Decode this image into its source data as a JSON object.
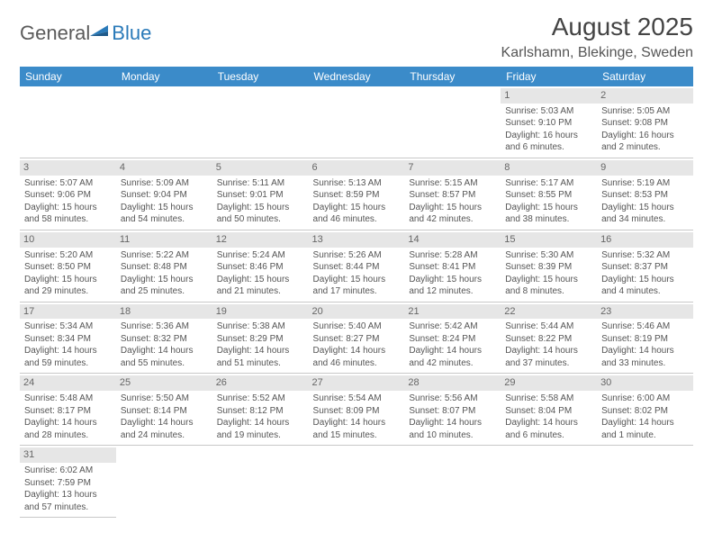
{
  "logo": {
    "general": "General",
    "blue": "Blue"
  },
  "title": "August 2025",
  "location": "Karlshamn, Blekinge, Sweden",
  "colors": {
    "header_bg": "#3b8bc9",
    "header_text": "#ffffff",
    "daynum_bg": "#e6e6e6",
    "border": "#c8c8c8",
    "text": "#555555",
    "logo_blue": "#2a7ab9"
  },
  "day_headers": [
    "Sunday",
    "Monday",
    "Tuesday",
    "Wednesday",
    "Thursday",
    "Friday",
    "Saturday"
  ],
  "weeks": [
    [
      null,
      null,
      null,
      null,
      null,
      {
        "n": "1",
        "sr": "Sunrise: 5:03 AM",
        "ss": "Sunset: 9:10 PM",
        "dl": "Daylight: 16 hours and 6 minutes."
      },
      {
        "n": "2",
        "sr": "Sunrise: 5:05 AM",
        "ss": "Sunset: 9:08 PM",
        "dl": "Daylight: 16 hours and 2 minutes."
      }
    ],
    [
      {
        "n": "3",
        "sr": "Sunrise: 5:07 AM",
        "ss": "Sunset: 9:06 PM",
        "dl": "Daylight: 15 hours and 58 minutes."
      },
      {
        "n": "4",
        "sr": "Sunrise: 5:09 AM",
        "ss": "Sunset: 9:04 PM",
        "dl": "Daylight: 15 hours and 54 minutes."
      },
      {
        "n": "5",
        "sr": "Sunrise: 5:11 AM",
        "ss": "Sunset: 9:01 PM",
        "dl": "Daylight: 15 hours and 50 minutes."
      },
      {
        "n": "6",
        "sr": "Sunrise: 5:13 AM",
        "ss": "Sunset: 8:59 PM",
        "dl": "Daylight: 15 hours and 46 minutes."
      },
      {
        "n": "7",
        "sr": "Sunrise: 5:15 AM",
        "ss": "Sunset: 8:57 PM",
        "dl": "Daylight: 15 hours and 42 minutes."
      },
      {
        "n": "8",
        "sr": "Sunrise: 5:17 AM",
        "ss": "Sunset: 8:55 PM",
        "dl": "Daylight: 15 hours and 38 minutes."
      },
      {
        "n": "9",
        "sr": "Sunrise: 5:19 AM",
        "ss": "Sunset: 8:53 PM",
        "dl": "Daylight: 15 hours and 34 minutes."
      }
    ],
    [
      {
        "n": "10",
        "sr": "Sunrise: 5:20 AM",
        "ss": "Sunset: 8:50 PM",
        "dl": "Daylight: 15 hours and 29 minutes."
      },
      {
        "n": "11",
        "sr": "Sunrise: 5:22 AM",
        "ss": "Sunset: 8:48 PM",
        "dl": "Daylight: 15 hours and 25 minutes."
      },
      {
        "n": "12",
        "sr": "Sunrise: 5:24 AM",
        "ss": "Sunset: 8:46 PM",
        "dl": "Daylight: 15 hours and 21 minutes."
      },
      {
        "n": "13",
        "sr": "Sunrise: 5:26 AM",
        "ss": "Sunset: 8:44 PM",
        "dl": "Daylight: 15 hours and 17 minutes."
      },
      {
        "n": "14",
        "sr": "Sunrise: 5:28 AM",
        "ss": "Sunset: 8:41 PM",
        "dl": "Daylight: 15 hours and 12 minutes."
      },
      {
        "n": "15",
        "sr": "Sunrise: 5:30 AM",
        "ss": "Sunset: 8:39 PM",
        "dl": "Daylight: 15 hours and 8 minutes."
      },
      {
        "n": "16",
        "sr": "Sunrise: 5:32 AM",
        "ss": "Sunset: 8:37 PM",
        "dl": "Daylight: 15 hours and 4 minutes."
      }
    ],
    [
      {
        "n": "17",
        "sr": "Sunrise: 5:34 AM",
        "ss": "Sunset: 8:34 PM",
        "dl": "Daylight: 14 hours and 59 minutes."
      },
      {
        "n": "18",
        "sr": "Sunrise: 5:36 AM",
        "ss": "Sunset: 8:32 PM",
        "dl": "Daylight: 14 hours and 55 minutes."
      },
      {
        "n": "19",
        "sr": "Sunrise: 5:38 AM",
        "ss": "Sunset: 8:29 PM",
        "dl": "Daylight: 14 hours and 51 minutes."
      },
      {
        "n": "20",
        "sr": "Sunrise: 5:40 AM",
        "ss": "Sunset: 8:27 PM",
        "dl": "Daylight: 14 hours and 46 minutes."
      },
      {
        "n": "21",
        "sr": "Sunrise: 5:42 AM",
        "ss": "Sunset: 8:24 PM",
        "dl": "Daylight: 14 hours and 42 minutes."
      },
      {
        "n": "22",
        "sr": "Sunrise: 5:44 AM",
        "ss": "Sunset: 8:22 PM",
        "dl": "Daylight: 14 hours and 37 minutes."
      },
      {
        "n": "23",
        "sr": "Sunrise: 5:46 AM",
        "ss": "Sunset: 8:19 PM",
        "dl": "Daylight: 14 hours and 33 minutes."
      }
    ],
    [
      {
        "n": "24",
        "sr": "Sunrise: 5:48 AM",
        "ss": "Sunset: 8:17 PM",
        "dl": "Daylight: 14 hours and 28 minutes."
      },
      {
        "n": "25",
        "sr": "Sunrise: 5:50 AM",
        "ss": "Sunset: 8:14 PM",
        "dl": "Daylight: 14 hours and 24 minutes."
      },
      {
        "n": "26",
        "sr": "Sunrise: 5:52 AM",
        "ss": "Sunset: 8:12 PM",
        "dl": "Daylight: 14 hours and 19 minutes."
      },
      {
        "n": "27",
        "sr": "Sunrise: 5:54 AM",
        "ss": "Sunset: 8:09 PM",
        "dl": "Daylight: 14 hours and 15 minutes."
      },
      {
        "n": "28",
        "sr": "Sunrise: 5:56 AM",
        "ss": "Sunset: 8:07 PM",
        "dl": "Daylight: 14 hours and 10 minutes."
      },
      {
        "n": "29",
        "sr": "Sunrise: 5:58 AM",
        "ss": "Sunset: 8:04 PM",
        "dl": "Daylight: 14 hours and 6 minutes."
      },
      {
        "n": "30",
        "sr": "Sunrise: 6:00 AM",
        "ss": "Sunset: 8:02 PM",
        "dl": "Daylight: 14 hours and 1 minute."
      }
    ],
    [
      {
        "n": "31",
        "sr": "Sunrise: 6:02 AM",
        "ss": "Sunset: 7:59 PM",
        "dl": "Daylight: 13 hours and 57 minutes."
      },
      null,
      null,
      null,
      null,
      null,
      null
    ]
  ]
}
